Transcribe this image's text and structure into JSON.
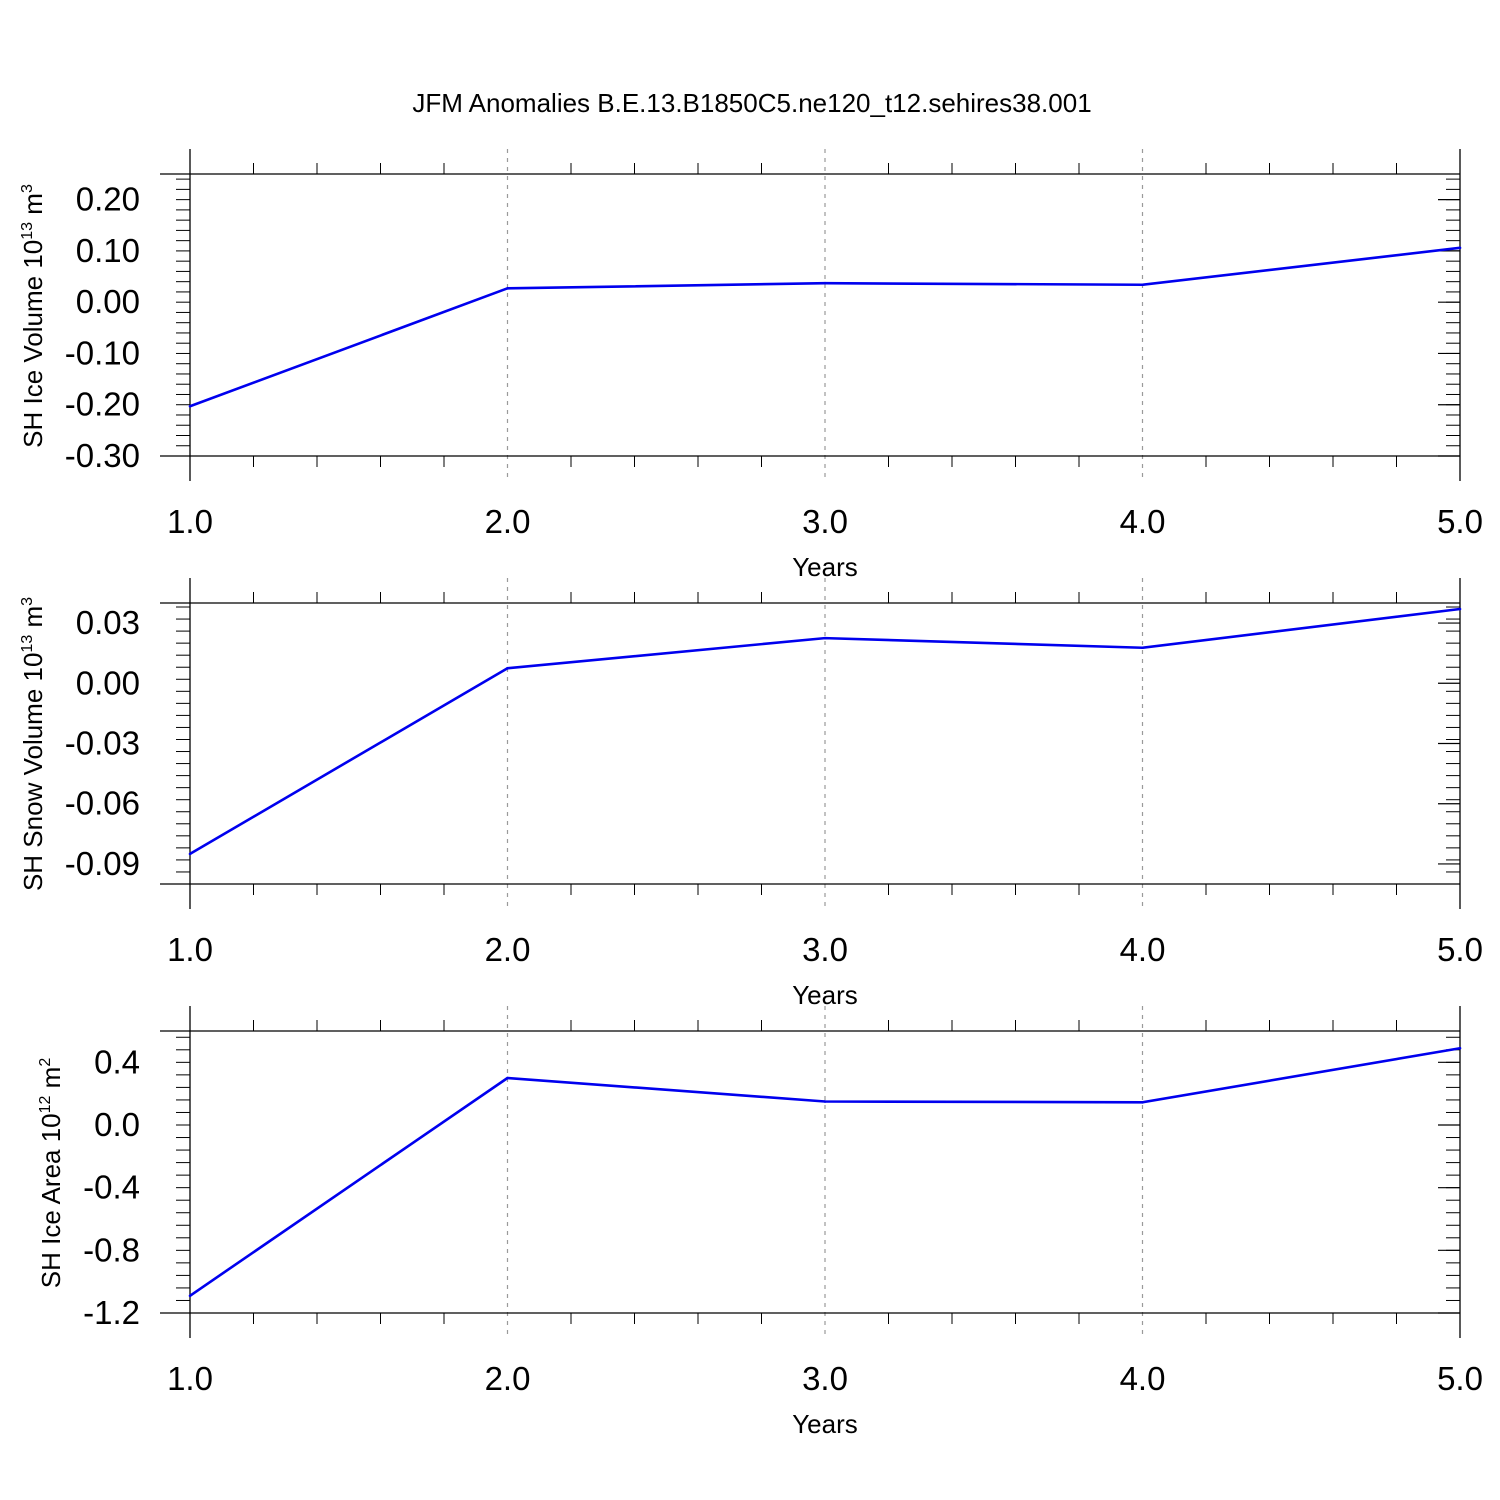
{
  "figure": {
    "title": "JFM Anomalies B.E.13.B1850C5.ne120_t12.sehires38.001"
  },
  "colors": {
    "line": "#0000ee",
    "axis": "#000000",
    "grid": "#9a9a9a"
  },
  "chart_data": [
    {
      "type": "line",
      "title": "",
      "xlabel": "Years",
      "ylabel_main": "SH Ice Volume 10",
      "ylabel_exp": "13",
      "ylabel_unit": " m",
      "ylabel_unit_exp": "3",
      "x": [
        1,
        2,
        3,
        4,
        5
      ],
      "series": [
        {
          "values": [
            -0.203,
            0.027,
            0.037,
            0.034,
            0.106
          ]
        }
      ],
      "xlim": [
        1,
        5
      ],
      "ylim": [
        -0.3,
        0.25
      ],
      "xticks": [
        "1.0",
        "2.0",
        "3.0",
        "4.0",
        "5.0"
      ],
      "yticks": [
        "0.20",
        "0.10",
        "0.00",
        "-0.10",
        "-0.20",
        "-0.30"
      ],
      "ytick_values": [
        0.2,
        0.1,
        0.0,
        -0.1,
        -0.2,
        -0.3
      ],
      "grid": "vertical dashed at major x ticks"
    },
    {
      "type": "line",
      "title": "",
      "xlabel": "Years",
      "ylabel_main": "SH Snow Volume 10",
      "ylabel_exp": "13",
      "ylabel_unit": " m",
      "ylabel_unit_exp": "3",
      "x": [
        1,
        2,
        3,
        4,
        5
      ],
      "series": [
        {
          "values": [
            -0.085,
            0.0075,
            0.0225,
            0.0177,
            0.037
          ]
        }
      ],
      "xlim": [
        1,
        5
      ],
      "ylim": [
        -0.1,
        0.04
      ],
      "xticks": [
        "1.0",
        "2.0",
        "3.0",
        "4.0",
        "5.0"
      ],
      "yticks": [
        "0.03",
        "0.00",
        "-0.03",
        "-0.06",
        "-0.09"
      ],
      "ytick_values": [
        0.03,
        0.0,
        -0.03,
        -0.06,
        -0.09
      ],
      "grid": "vertical dashed at major x ticks"
    },
    {
      "type": "line",
      "title": "",
      "xlabel": "Years",
      "ylabel_main": "SH Ice Area 10",
      "ylabel_exp": "12",
      "ylabel_unit": " m",
      "ylabel_unit_exp": "2",
      "x": [
        1,
        2,
        3,
        4,
        5
      ],
      "series": [
        {
          "values": [
            -1.09,
            0.3,
            0.15,
            0.145,
            0.49
          ]
        }
      ],
      "xlim": [
        1,
        5
      ],
      "ylim": [
        -1.2,
        0.6
      ],
      "xticks": [
        "1.0",
        "2.0",
        "3.0",
        "4.0",
        "5.0"
      ],
      "yticks": [
        "0.4",
        "0.0",
        "-0.4",
        "-0.8",
        "-1.2"
      ],
      "ytick_values": [
        0.4,
        0.0,
        -0.4,
        -0.8,
        -1.2
      ],
      "grid": "vertical dashed at major x ticks"
    }
  ]
}
